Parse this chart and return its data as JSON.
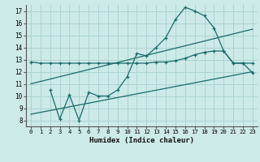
{
  "xlabel": "Humidex (Indice chaleur)",
  "background_color": "#cceae8",
  "grid_color": "#aad4d2",
  "line_color": "#1a6b6b",
  "xlim": [
    -0.5,
    23.5
  ],
  "ylim": [
    7.5,
    17.5
  ],
  "xticks": [
    0,
    1,
    2,
    3,
    4,
    5,
    6,
    7,
    8,
    9,
    10,
    11,
    12,
    13,
    14,
    15,
    16,
    17,
    18,
    19,
    20,
    21,
    22,
    23
  ],
  "yticks": [
    8,
    9,
    10,
    11,
    12,
    13,
    14,
    15,
    16,
    17
  ],
  "line1_x": [
    0,
    1,
    2,
    3,
    4,
    5,
    6,
    7,
    8,
    9,
    10,
    11,
    12,
    13,
    14,
    15,
    16,
    17,
    18,
    19,
    20,
    21,
    22,
    23
  ],
  "line1_y": [
    12.8,
    12.7,
    12.7,
    12.7,
    12.7,
    12.7,
    12.7,
    12.7,
    12.7,
    12.7,
    12.7,
    12.7,
    12.7,
    12.8,
    12.8,
    12.9,
    13.1,
    13.4,
    13.6,
    13.7,
    13.7,
    12.7,
    12.7,
    12.7
  ],
  "line2_x": [
    2,
    3,
    4,
    5,
    6,
    7,
    8,
    9,
    10,
    11,
    12,
    13,
    14,
    15,
    16,
    17,
    18,
    19,
    20,
    21,
    22,
    23
  ],
  "line2_y": [
    10.5,
    8.1,
    10.1,
    8.0,
    10.3,
    10.0,
    10.0,
    10.5,
    11.6,
    13.5,
    13.3,
    14.0,
    14.8,
    16.3,
    17.3,
    17.0,
    16.6,
    15.6,
    13.7,
    12.7,
    12.7,
    11.9
  ],
  "line3_x": [
    0,
    23
  ],
  "line3_y": [
    8.5,
    12.0
  ],
  "line4_x": [
    0,
    23
  ],
  "line4_y": [
    11.0,
    15.5
  ]
}
